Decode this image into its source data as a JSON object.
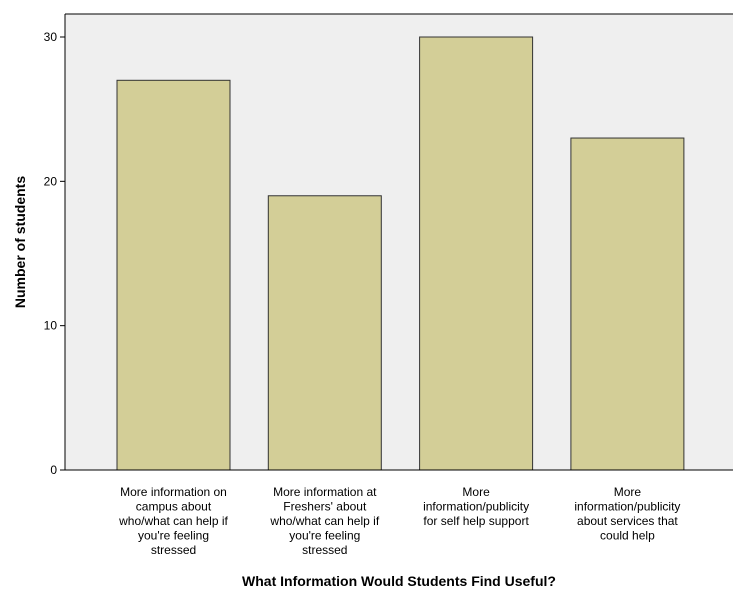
{
  "chart_data": {
    "type": "bar",
    "categories": [
      [
        "More information on",
        "campus about",
        "who/what can help if",
        "you're feeling",
        "stressed"
      ],
      [
        "More information at",
        "Freshers' about",
        "who/what can help if",
        "you're feeling",
        "stressed"
      ],
      [
        "More",
        "information/publicity",
        "for self help support"
      ],
      [
        "More",
        "information/publicity",
        "about services that",
        "could help"
      ]
    ],
    "values": [
      27,
      19,
      30,
      23
    ],
    "xlabel": "What Information Would Students Find Useful?",
    "ylabel": "Number of students",
    "ylim": [
      0,
      30
    ],
    "yticks": [
      0,
      10,
      20,
      30
    ],
    "grid": false,
    "colors": {
      "plot_background": "#efefef",
      "bar_fill": "#d3ce97",
      "bar_stroke": "#333333",
      "axis": "#000000"
    }
  }
}
